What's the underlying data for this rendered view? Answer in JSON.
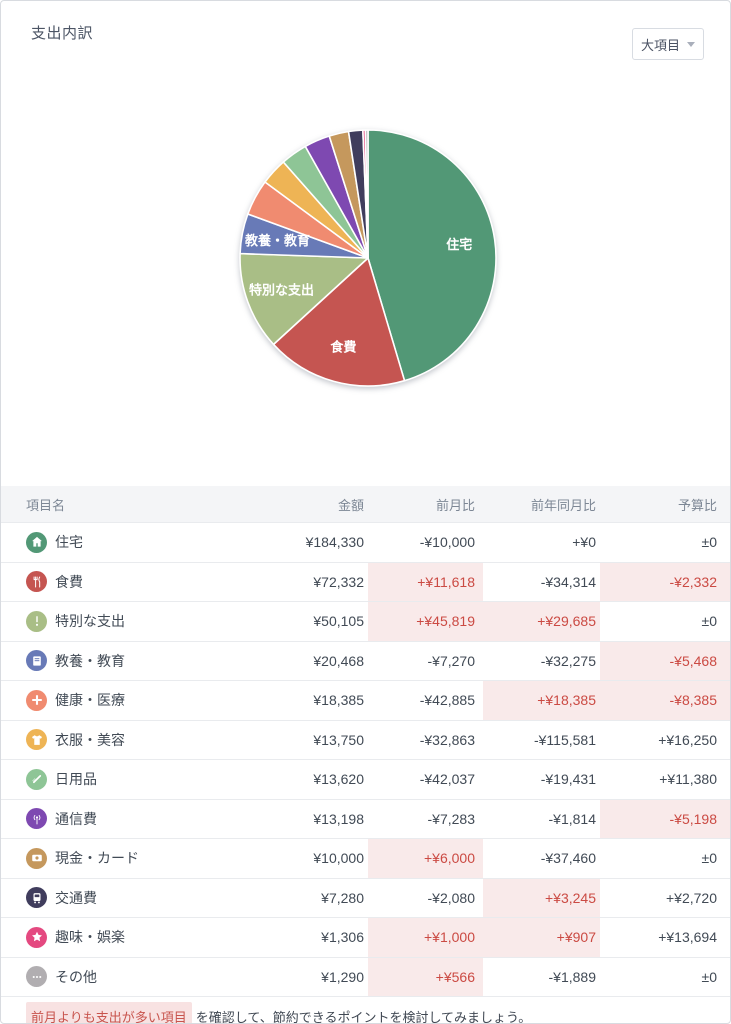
{
  "header": {
    "title": "支出内訳",
    "dropdown_label": "大項目"
  },
  "colors": {
    "alert_text": "#cb4a43",
    "highlight_bg": "#f9eaea",
    "header_bg": "#f4f5f7",
    "header_text": "#7d8795",
    "body_text": "#414a55"
  },
  "chart_data": {
    "type": "pie",
    "title": "支出内訳",
    "currency": "¥",
    "total": 406064,
    "start_angle_deg": 0,
    "direction": "clockwise",
    "legend_position": "none",
    "slices": [
      {
        "label": "住宅",
        "value": 184330,
        "color": "#529876",
        "show_label": true
      },
      {
        "label": "食費",
        "value": 72332,
        "color": "#c55551",
        "show_label": true
      },
      {
        "label": "特別な支出",
        "value": 50105,
        "color": "#a9be86",
        "show_label": true
      },
      {
        "label": "教養・教育",
        "value": 20468,
        "color": "#687ab7",
        "show_label": true
      },
      {
        "label": "健康・医療",
        "value": 18385,
        "color": "#f08b70",
        "show_label": false
      },
      {
        "label": "衣服・美容",
        "value": 13750,
        "color": "#eeb455",
        "show_label": false
      },
      {
        "label": "日用品",
        "value": 13620,
        "color": "#8ec596",
        "show_label": false
      },
      {
        "label": "通信費",
        "value": 13198,
        "color": "#7e49b1",
        "show_label": false
      },
      {
        "label": "現金・カード",
        "value": 10000,
        "color": "#c5985d",
        "show_label": false
      },
      {
        "label": "交通費",
        "value": 7280,
        "color": "#403d5d",
        "show_label": false
      },
      {
        "label": "趣味・娯楽",
        "value": 1306,
        "color": "#e44980",
        "show_label": false
      },
      {
        "label": "その他",
        "value": 1290,
        "color": "#b1aeb1",
        "show_label": false
      }
    ]
  },
  "table": {
    "headers": [
      "項目名",
      "金額",
      "前月比",
      "前年同月比",
      "予算比"
    ],
    "rows": [
      {
        "icon": "home",
        "color": "#529876",
        "label": "住宅",
        "amount": "¥184,330",
        "mom": {
          "text": "-¥10,000",
          "hl": false
        },
        "yoy": {
          "text": "+¥0",
          "hl": false
        },
        "budget": {
          "text": "±0",
          "hl": false
        }
      },
      {
        "icon": "utensils",
        "color": "#c55551",
        "label": "食費",
        "amount": "¥72,332",
        "mom": {
          "text": "+¥11,618",
          "hl": true
        },
        "yoy": {
          "text": "-¥34,314",
          "hl": false
        },
        "budget": {
          "text": "-¥2,332",
          "hl": true
        }
      },
      {
        "icon": "exclamation",
        "color": "#a9be86",
        "label": "特別な支出",
        "amount": "¥50,105",
        "mom": {
          "text": "+¥45,819",
          "hl": true
        },
        "yoy": {
          "text": "+¥29,685",
          "hl": true
        },
        "budget": {
          "text": "±0",
          "hl": false
        }
      },
      {
        "icon": "book",
        "color": "#687ab7",
        "label": "教養・教育",
        "amount": "¥20,468",
        "mom": {
          "text": "-¥7,270",
          "hl": false
        },
        "yoy": {
          "text": "-¥32,275",
          "hl": false
        },
        "budget": {
          "text": "-¥5,468",
          "hl": true
        }
      },
      {
        "icon": "medical-plus",
        "color": "#f08b70",
        "label": "健康・医療",
        "amount": "¥18,385",
        "mom": {
          "text": "-¥42,885",
          "hl": false
        },
        "yoy": {
          "text": "+¥18,385",
          "hl": true
        },
        "budget": {
          "text": "-¥8,385",
          "hl": true
        }
      },
      {
        "icon": "tshirt",
        "color": "#eeb455",
        "label": "衣服・美容",
        "amount": "¥13,750",
        "mom": {
          "text": "-¥32,863",
          "hl": false
        },
        "yoy": {
          "text": "-¥115,581",
          "hl": false
        },
        "budget": {
          "text": "+¥16,250",
          "hl": false
        }
      },
      {
        "icon": "toothbrush",
        "color": "#8ec596",
        "label": "日用品",
        "amount": "¥13,620",
        "mom": {
          "text": "-¥42,037",
          "hl": false
        },
        "yoy": {
          "text": "-¥19,431",
          "hl": false
        },
        "budget": {
          "text": "+¥11,380",
          "hl": false
        }
      },
      {
        "icon": "antenna",
        "color": "#7e49b1",
        "label": "通信費",
        "amount": "¥13,198",
        "mom": {
          "text": "-¥7,283",
          "hl": false
        },
        "yoy": {
          "text": "-¥1,814",
          "hl": false
        },
        "budget": {
          "text": "-¥5,198",
          "hl": true
        }
      },
      {
        "icon": "money-card",
        "color": "#c5985d",
        "label": "現金・カード",
        "amount": "¥10,000",
        "mom": {
          "text": "+¥6,000",
          "hl": true
        },
        "yoy": {
          "text": "-¥37,460",
          "hl": false
        },
        "budget": {
          "text": "±0",
          "hl": false
        }
      },
      {
        "icon": "train",
        "color": "#403d5d",
        "label": "交通費",
        "amount": "¥7,280",
        "mom": {
          "text": "-¥2,080",
          "hl": false
        },
        "yoy": {
          "text": "+¥3,245",
          "hl": true
        },
        "budget": {
          "text": "+¥2,720",
          "hl": false
        }
      },
      {
        "icon": "star",
        "color": "#e44980",
        "label": "趣味・娯楽",
        "amount": "¥1,306",
        "mom": {
          "text": "+¥1,000",
          "hl": true
        },
        "yoy": {
          "text": "+¥907",
          "hl": true
        },
        "budget": {
          "text": "+¥13,694",
          "hl": false
        }
      },
      {
        "icon": "ellipsis",
        "color": "#b1aeb1",
        "label": "その他",
        "amount": "¥1,290",
        "mom": {
          "text": "+¥566",
          "hl": true
        },
        "yoy": {
          "text": "-¥1,889",
          "hl": false
        },
        "budget": {
          "text": "±0",
          "hl": false
        }
      }
    ]
  },
  "note": {
    "highlight": "前月よりも支出が多い項目",
    "rest": "を確認して、節約できるポイントを検討してみましょう。"
  }
}
